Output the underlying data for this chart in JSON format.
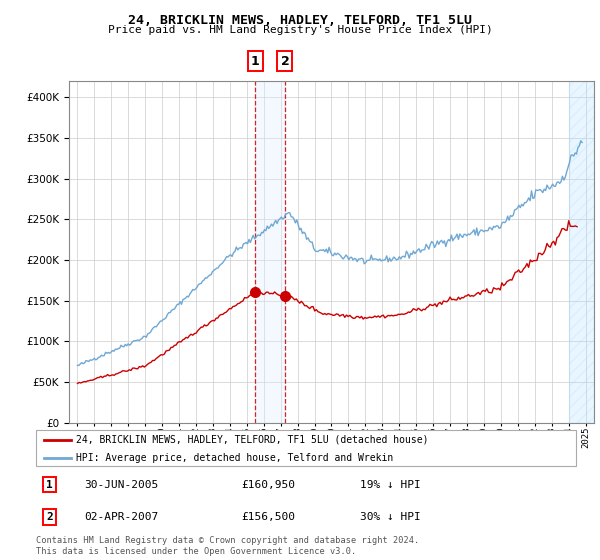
{
  "title": "24, BRICKLIN MEWS, HADLEY, TELFORD, TF1 5LU",
  "subtitle": "Price paid vs. HM Land Registry's House Price Index (HPI)",
  "legend_line1": "24, BRICKLIN MEWS, HADLEY, TELFORD, TF1 5LU (detached house)",
  "legend_line2": "HPI: Average price, detached house, Telford and Wrekin",
  "footer": "Contains HM Land Registry data © Crown copyright and database right 2024.\nThis data is licensed under the Open Government Licence v3.0.",
  "transaction1_date": "30-JUN-2005",
  "transaction1_price": "£160,950",
  "transaction1_hpi": "19% ↓ HPI",
  "transaction1_x": 2005.5,
  "transaction1_y": 160950,
  "transaction2_date": "02-APR-2007",
  "transaction2_price": "£156,500",
  "transaction2_hpi": "30% ↓ HPI",
  "transaction2_x": 2007.25,
  "transaction2_y": 156500,
  "hpi_color": "#6fa8d4",
  "price_color": "#cc0000",
  "vline_color": "#cc0000",
  "vshade_color": "#ddeeff",
  "marker_color": "#cc0000",
  "ylim": [
    0,
    420000
  ],
  "yticks": [
    0,
    50000,
    100000,
    150000,
    200000,
    250000,
    300000,
    350000,
    400000
  ],
  "xlim": [
    1994.5,
    2025.5
  ],
  "xticks": [
    1995,
    1996,
    1997,
    1998,
    1999,
    2000,
    2001,
    2002,
    2003,
    2004,
    2005,
    2006,
    2007,
    2008,
    2009,
    2010,
    2011,
    2012,
    2013,
    2014,
    2015,
    2016,
    2017,
    2018,
    2019,
    2020,
    2021,
    2022,
    2023,
    2024,
    2025
  ],
  "hatch_start": 2024.0,
  "hatch_end": 2025.5
}
